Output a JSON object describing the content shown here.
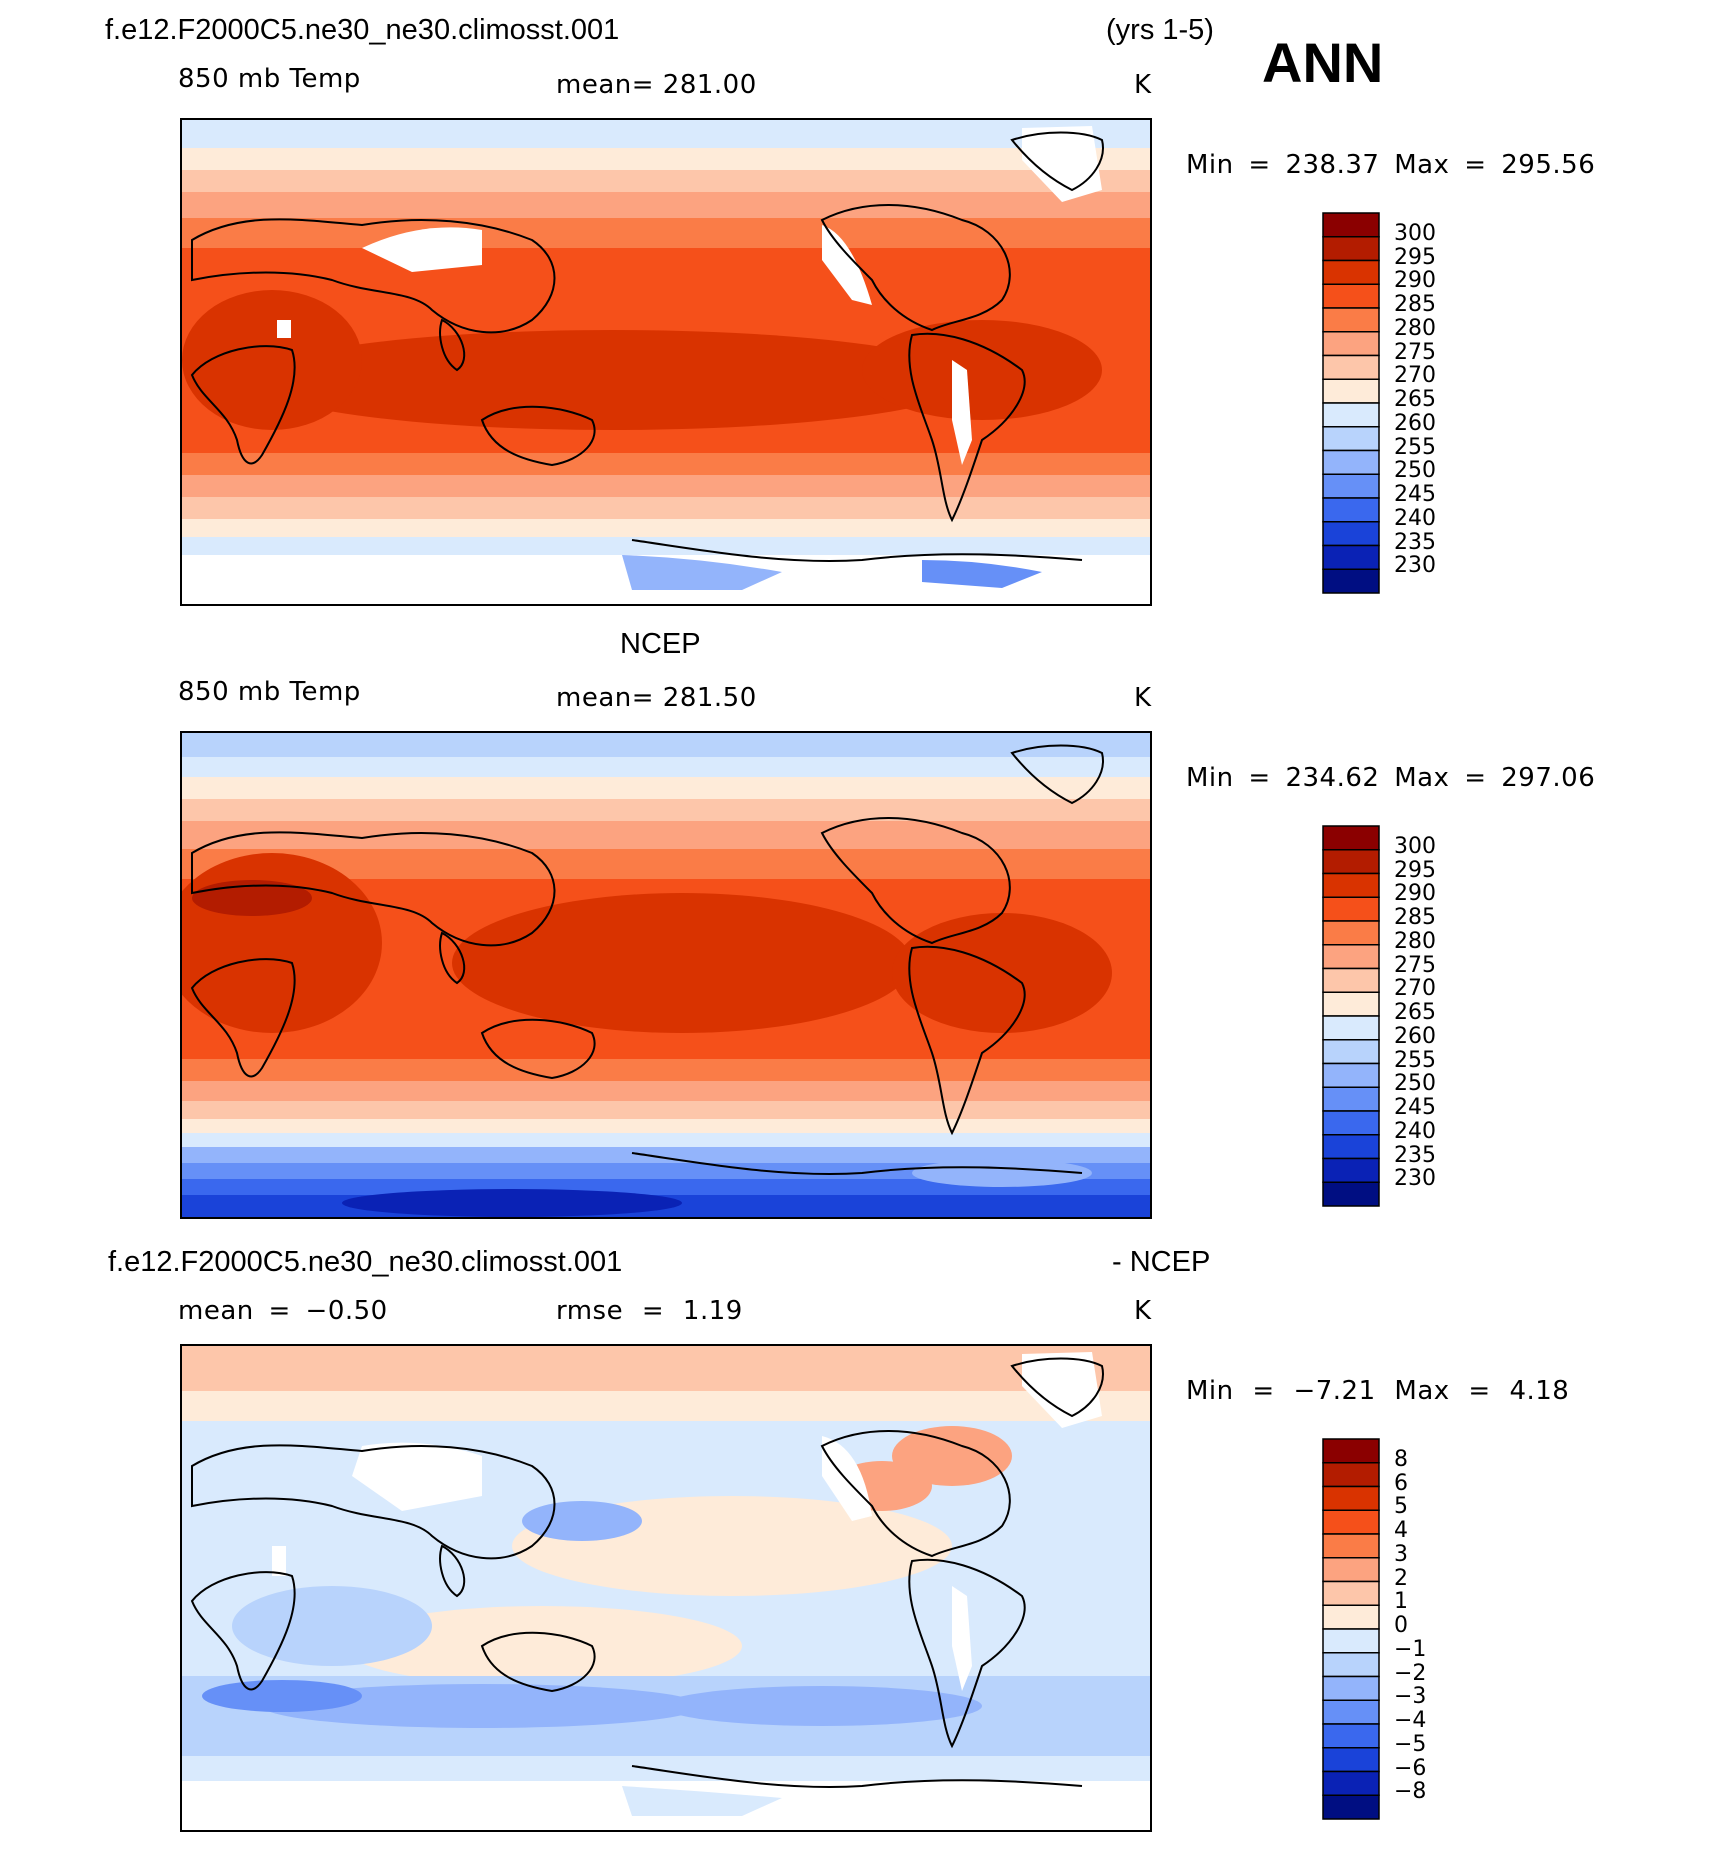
{
  "header": {
    "case_name": "f.e12.F2000C5.ne30_ne30.climosst.001",
    "years": "(yrs 1-5)",
    "season": "ANN"
  },
  "panels": [
    {
      "id": "model",
      "heading": "",
      "left_label": "850 mb Temp",
      "center_label": "mean= 281.00",
      "units": "K",
      "min_label": "Min",
      "min_value": "238.37",
      "max_label": "Max",
      "max_value": "295.56",
      "stats_text": "Min = 238.37 Max = 295.56"
    },
    {
      "id": "obs",
      "heading": "NCEP",
      "left_label": "850 mb Temp",
      "center_label": "mean= 281.50",
      "units": "K",
      "min_label": "Min",
      "min_value": "234.62",
      "max_label": "Max",
      "max_value": "297.06",
      "stats_text": "Min = 234.62 Max = 297.06"
    },
    {
      "id": "diff",
      "heading_left": "f.e12.F2000C5.ne30_ne30.climosst.001",
      "heading_right": "- NCEP",
      "left_label": "mean = −0.50",
      "center_label": "rmse = 1.19",
      "units": "K",
      "min_label": "Min",
      "min_value": "−7.21",
      "max_label": "Max",
      "max_value": "4.18",
      "stats_text": "Min = −7.21 Max = 4.18"
    }
  ],
  "colorbars": {
    "temperature": {
      "labels": [
        "300",
        "295",
        "290",
        "285",
        "280",
        "275",
        "270",
        "265",
        "260",
        "255",
        "250",
        "245",
        "240",
        "235",
        "230"
      ],
      "colors": [
        "#8b0000",
        "#b31c00",
        "#d93300",
        "#f5501a",
        "#fa7c47",
        "#fca380",
        "#fdc6aa",
        "#feebd9",
        "#d9eafd",
        "#b8d3fc",
        "#93b4fb",
        "#6690f7",
        "#3a68ee",
        "#1a43d9",
        "#0a22b5",
        "#000e82"
      ]
    },
    "difference": {
      "labels": [
        "8",
        "6",
        "5",
        "4",
        "3",
        "2",
        "1",
        "0",
        "−1",
        "−2",
        "−3",
        "−4",
        "−5",
        "−6",
        "−8"
      ],
      "colors": [
        "#8b0000",
        "#b31c00",
        "#d93300",
        "#f5501a",
        "#fa7c47",
        "#fca380",
        "#fdc6aa",
        "#feebd9",
        "#d9eafd",
        "#b8d3fc",
        "#93b4fb",
        "#6690f7",
        "#3a68ee",
        "#1a43d9",
        "#0a22b5",
        "#000e82"
      ]
    }
  },
  "chart_data": [
    {
      "type": "heatmap",
      "title": "850 mb Temp",
      "subtitle": "f.e12.F2000C5.ne30_ne30.climosst.001 (yrs 1-5) ANN",
      "units": "K",
      "mean": 281.0,
      "min": 238.37,
      "max": 295.56,
      "contour_levels": [
        230,
        235,
        240,
        245,
        250,
        255,
        260,
        265,
        270,
        275,
        280,
        285,
        290,
        295,
        300
      ],
      "projection": "cylindrical equidistant, Pacific-centred",
      "zonal_band_values": [
        {
          "lat_range": [
            60,
            90
          ],
          "value": 262
        },
        {
          "lat_range": [
            40,
            60
          ],
          "value": 272
        },
        {
          "lat_range": [
            20,
            40
          ],
          "value": 283
        },
        {
          "lat_range": [
            -20,
            20
          ],
          "value": 292
        },
        {
          "lat_range": [
            -40,
            -20
          ],
          "value": 284
        },
        {
          "lat_range": [
            -60,
            -40
          ],
          "value": 272
        },
        {
          "lat_range": [
            -75,
            -60
          ],
          "value": 262
        }
      ]
    },
    {
      "type": "heatmap",
      "title": "850 mb Temp",
      "subtitle": "NCEP",
      "units": "K",
      "mean": 281.5,
      "min": 234.62,
      "max": 297.06,
      "contour_levels": [
        230,
        235,
        240,
        245,
        250,
        255,
        260,
        265,
        270,
        275,
        280,
        285,
        290,
        295,
        300
      ],
      "projection": "cylindrical equidistant, Pacific-centred",
      "zonal_band_values": [
        {
          "lat_range": [
            60,
            90
          ],
          "value": 258
        },
        {
          "lat_range": [
            40,
            60
          ],
          "value": 272
        },
        {
          "lat_range": [
            20,
            40
          ],
          "value": 284
        },
        {
          "lat_range": [
            -20,
            20
          ],
          "value": 293
        },
        {
          "lat_range": [
            -40,
            -20
          ],
          "value": 285
        },
        {
          "lat_range": [
            -60,
            -40
          ],
          "value": 272
        },
        {
          "lat_range": [
            -90,
            -60
          ],
          "value": 245
        }
      ]
    },
    {
      "type": "heatmap",
      "title": "f.e12.F2000C5.ne30_ne30.climosst.001 - NCEP",
      "units": "K",
      "mean": -0.5,
      "rmse": 1.19,
      "min": -7.21,
      "max": 4.18,
      "contour_levels": [
        -8,
        -6,
        -5,
        -4,
        -3,
        -2,
        -1,
        0,
        1,
        2,
        3,
        4,
        5,
        6,
        8
      ],
      "projection": "cylindrical equidistant, Pacific-centred",
      "zonal_band_values": [
        {
          "lat_range": [
            60,
            90
          ],
          "value": 0.8
        },
        {
          "lat_range": [
            30,
            60
          ],
          "value": -0.5
        },
        {
          "lat_range": [
            -30,
            30
          ],
          "value": 0.3
        },
        {
          "lat_range": [
            -60,
            -30
          ],
          "value": -1.8
        },
        {
          "lat_range": [
            -75,
            -60
          ],
          "value": -0.6
        }
      ]
    }
  ]
}
